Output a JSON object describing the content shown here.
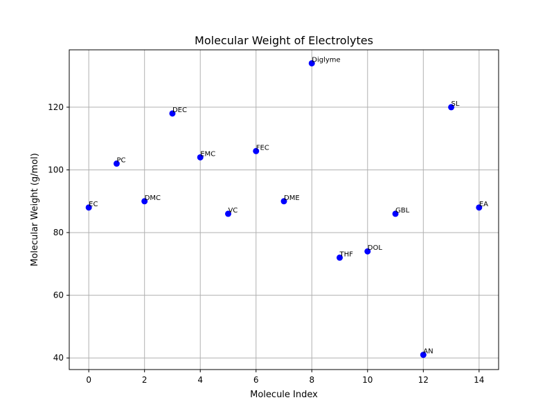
{
  "chart_data": {
    "type": "scatter",
    "title": "Molecular Weight of Electrolytes",
    "xlabel": "Molecule Index",
    "ylabel": "Molecular Weight (g/mol)",
    "xlim": [
      -0.7,
      14.7
    ],
    "ylim": [
      36.3,
      138.3
    ],
    "xticks": [
      0,
      2,
      4,
      6,
      8,
      10,
      12,
      14
    ],
    "yticks": [
      40,
      60,
      80,
      100,
      120
    ],
    "grid": true,
    "marker_color": "#0000ff",
    "grid_color": "#b0b0b0",
    "points": [
      {
        "x": 0,
        "y": 88,
        "label": "EC"
      },
      {
        "x": 1,
        "y": 102,
        "label": "PC"
      },
      {
        "x": 2,
        "y": 90,
        "label": "DMC"
      },
      {
        "x": 3,
        "y": 118,
        "label": "DEC"
      },
      {
        "x": 4,
        "y": 104,
        "label": "EMC"
      },
      {
        "x": 5,
        "y": 86,
        "label": "VC"
      },
      {
        "x": 6,
        "y": 106,
        "label": "FEC"
      },
      {
        "x": 7,
        "y": 90,
        "label": "DME"
      },
      {
        "x": 8,
        "y": 134,
        "label": "Diglyme"
      },
      {
        "x": 9,
        "y": 72,
        "label": "THF"
      },
      {
        "x": 10,
        "y": 74,
        "label": "DOL"
      },
      {
        "x": 11,
        "y": 86,
        "label": "GBL"
      },
      {
        "x": 12,
        "y": 41,
        "label": "AN"
      },
      {
        "x": 13,
        "y": 120,
        "label": "SL"
      },
      {
        "x": 14,
        "y": 88,
        "label": "EA"
      }
    ]
  }
}
